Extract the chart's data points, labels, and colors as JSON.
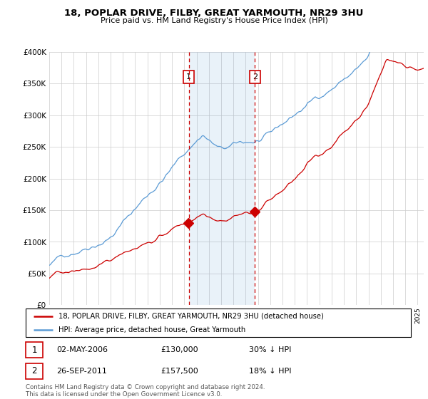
{
  "title": "18, POPLAR DRIVE, FILBY, GREAT YARMOUTH, NR29 3HU",
  "subtitle": "Price paid vs. HM Land Registry's House Price Index (HPI)",
  "legend_line1": "18, POPLAR DRIVE, FILBY, GREAT YARMOUTH, NR29 3HU (detached house)",
  "legend_line2": "HPI: Average price, detached house, Great Yarmouth",
  "annotation1_date": "02-MAY-2006",
  "annotation1_price": "£130,000",
  "annotation1_hpi": "30% ↓ HPI",
  "annotation2_date": "26-SEP-2011",
  "annotation2_price": "£157,500",
  "annotation2_hpi": "18% ↓ HPI",
  "footer": "Contains HM Land Registry data © Crown copyright and database right 2024.\nThis data is licensed under the Open Government Licence v3.0.",
  "red_color": "#cc0000",
  "blue_color": "#5b9bd5",
  "background_color": "#ffffff",
  "grid_color": "#cccccc",
  "sale1_year": 2006.37,
  "sale2_year": 2011.75,
  "sale1_value": 130000,
  "sale2_value": 157500,
  "ylim_max": 400000,
  "xlim_min": 1995.0,
  "xlim_max": 2025.5
}
